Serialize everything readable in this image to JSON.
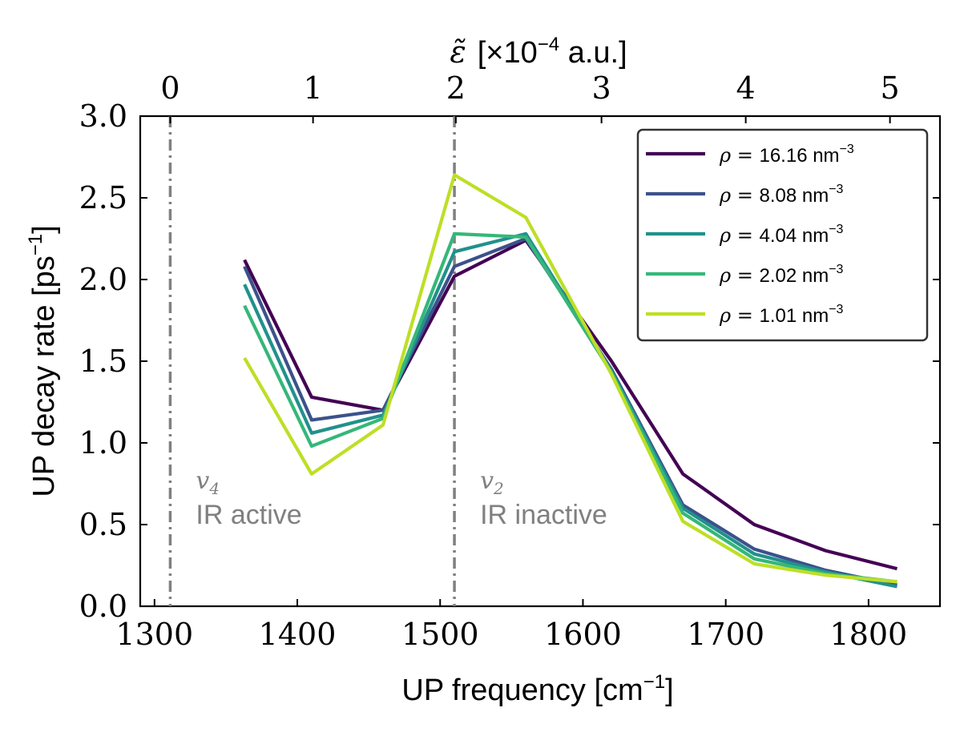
{
  "chart_data": {
    "type": "line",
    "xlabel": "UP frequency [cm",
    "xlabel_sup": "−1",
    "xlabel_end": "]",
    "ylabel": "UP decay rate [ps",
    "ylabel_sup": "−1",
    "ylabel_end": "]",
    "top_xlabel": {
      "symbol": "ε̃",
      "prefix": "[×10",
      "sup": "−4",
      "suffix": " a.u.]"
    },
    "xlim": [
      1290,
      1850
    ],
    "ylim": [
      0.0,
      3.0
    ],
    "xticks": [
      1300,
      1400,
      1500,
      1600,
      1700,
      1800
    ],
    "yticks": [
      0.0,
      0.5,
      1.0,
      1.5,
      2.0,
      2.5,
      3.0
    ],
    "ytick_labels": [
      "0.0",
      "0.5",
      "1.0",
      "1.5",
      "2.0",
      "2.5",
      "3.0"
    ],
    "top_ticks": [
      {
        "label": "0",
        "x": 1311
      },
      {
        "label": "1",
        "x": 1411
      },
      {
        "label": "2",
        "x": 1511
      },
      {
        "label": "3",
        "x": 1613
      },
      {
        "label": "4",
        "x": 1714
      },
      {
        "label": "5",
        "x": 1815
      }
    ],
    "vlines": [
      {
        "x": 1311,
        "symbol": "v",
        "sub": "4",
        "text": "IR active"
      },
      {
        "x": 1510,
        "symbol": "v",
        "sub": "2",
        "text": "IR inactive"
      }
    ],
    "legend_position": "top-right",
    "x": [
      1363,
      1410,
      1460,
      1510,
      1560,
      1620,
      1670,
      1720,
      1770,
      1820
    ],
    "series": [
      {
        "prefix": "ρ = ",
        "label": "16.16 nm",
        "sup": "−3",
        "color": "#440154",
        "values": [
          2.12,
          1.28,
          1.2,
          2.02,
          2.24,
          1.5,
          0.81,
          0.5,
          0.34,
          0.23
        ]
      },
      {
        "prefix": "ρ = ",
        "label": "8.08 nm",
        "sup": "−3",
        "color": "#3b528b",
        "values": [
          2.08,
          1.14,
          1.2,
          2.08,
          2.25,
          1.45,
          0.62,
          0.35,
          0.22,
          0.13
        ]
      },
      {
        "prefix": "ρ = ",
        "label": "4.04 nm",
        "sup": "−3",
        "color": "#21918c",
        "values": [
          1.97,
          1.06,
          1.17,
          2.17,
          2.28,
          1.44,
          0.6,
          0.32,
          0.21,
          0.12
        ]
      },
      {
        "prefix": "ρ = ",
        "label": "2.02 nm",
        "sup": "−3",
        "color": "#35b779",
        "values": [
          1.84,
          0.98,
          1.15,
          2.28,
          2.26,
          1.43,
          0.57,
          0.29,
          0.2,
          0.15
        ]
      },
      {
        "prefix": "ρ = ",
        "label": "1.01 nm",
        "sup": "−3",
        "color": "#bddf26",
        "values": [
          1.52,
          0.81,
          1.11,
          2.64,
          2.38,
          1.42,
          0.52,
          0.26,
          0.19,
          0.15
        ]
      }
    ]
  }
}
